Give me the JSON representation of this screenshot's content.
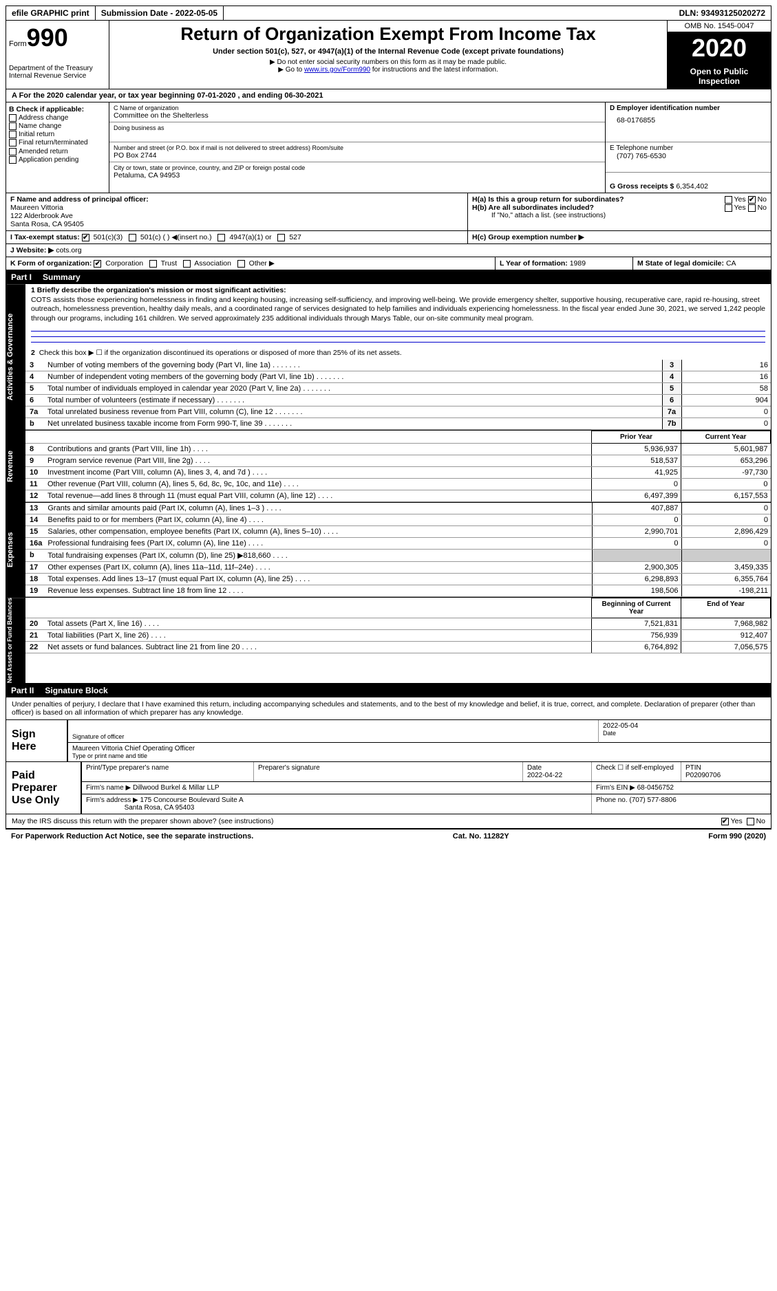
{
  "top": {
    "efile": "efile GRAPHIC print",
    "submission_date_label": "Submission Date - 2022-05-05",
    "dln_label": "DLN: 93493125020272"
  },
  "header": {
    "form_word": "Form",
    "form_num": "990",
    "dept": "Department of the Treasury",
    "irs": "Internal Revenue Service",
    "title": "Return of Organization Exempt From Income Tax",
    "subtitle": "Under section 501(c), 527, or 4947(a)(1) of the Internal Revenue Code (except private foundations)",
    "note1": "▶ Do not enter social security numbers on this form as it may be made public.",
    "note2_pre": "▶ Go to ",
    "note2_link": "www.irs.gov/Form990",
    "note2_post": " for instructions and the latest information.",
    "omb": "OMB No. 1545-0047",
    "year": "2020",
    "open": "Open to Public Inspection"
  },
  "a_line": "A For the 2020 calendar year, or tax year beginning 07-01-2020    , and ending 06-30-2021",
  "b": {
    "label": "B Check if applicable:",
    "opts": [
      "Address change",
      "Name change",
      "Initial return",
      "Final return/terminated",
      "Amended return",
      "Application pending"
    ]
  },
  "c": {
    "label_name": "C Name of organization",
    "org": "Committee on the Shelterless",
    "dba": "Doing business as",
    "addr_label": "Number and street (or P.O. box if mail is not delivered to street address)        Room/suite",
    "addr": "PO Box 2744",
    "city_label": "City or town, state or province, country, and ZIP or foreign postal code",
    "city": "Petaluma, CA  94953"
  },
  "d": {
    "label": "D Employer identification number",
    "val": "68-0176855"
  },
  "e": {
    "label": "E Telephone number",
    "val": "(707) 765-6530"
  },
  "g": {
    "label": "G Gross receipts $",
    "val": "6,354,402"
  },
  "f": {
    "label": "F  Name and address of principal officer:",
    "name": "Maureen Vittoria",
    "addr1": "122 Alderbrook Ave",
    "addr2": "Santa Rosa, CA  95405"
  },
  "h": {
    "a_label": "H(a)  Is this a group return for subordinates?",
    "a_yes": "Yes",
    "a_no": "No",
    "b_label": "H(b)  Are all subordinates included?",
    "b_note": "If \"No,\" attach a list. (see instructions)",
    "c_label": "H(c)  Group exemption number ▶"
  },
  "i": {
    "label": "I   Tax-exempt status:",
    "o1": "501(c)(3)",
    "o2": "501(c) (  ) ◀(insert no.)",
    "o3": "4947(a)(1) or",
    "o4": "527"
  },
  "j": {
    "label": "J  Website: ▶",
    "val": "cots.org"
  },
  "k": {
    "label": "K Form of organization:",
    "o1": "Corporation",
    "o2": "Trust",
    "o3": "Association",
    "o4": "Other ▶"
  },
  "l": {
    "label": "L Year of formation:",
    "val": "1989"
  },
  "m": {
    "label": "M State of legal domicile:",
    "val": "CA"
  },
  "parts": {
    "p1_num": "Part I",
    "p1_title": "Summary",
    "p2_num": "Part II",
    "p2_title": "Signature Block"
  },
  "summary": {
    "mission_label": "1   Briefly describe the organization's mission or most significant activities:",
    "mission": "COTS assists those experiencing homelessness in finding and keeping housing, increasing self-sufficiency, and improving well-being. We provide emergency shelter, supportive housing, recuperative care, rapid re-housing, street outreach, homelessness prevention, healthy daily meals, and a coordinated range of services designated to help families and individuals experiencing homelessness. In the fiscal year ended June 30, 2021, we served 1,242 people through our programs, including 161 children. We served approximately 235 additional individuals through Marys Table, our on-site community meal program.",
    "l2": "Check this box ▶ ☐  if the organization discontinued its operations or disposed of more than 25% of its net assets.",
    "lines_single": [
      {
        "n": "3",
        "d": "Number of voting members of the governing body (Part VI, line 1a)",
        "c": "3",
        "v": "16"
      },
      {
        "n": "4",
        "d": "Number of independent voting members of the governing body (Part VI, line 1b)",
        "c": "4",
        "v": "16"
      },
      {
        "n": "5",
        "d": "Total number of individuals employed in calendar year 2020 (Part V, line 2a)",
        "c": "5",
        "v": "58"
      },
      {
        "n": "6",
        "d": "Total number of volunteers (estimate if necessary)",
        "c": "6",
        "v": "904"
      },
      {
        "n": "7a",
        "d": "Total unrelated business revenue from Part VIII, column (C), line 12",
        "c": "7a",
        "v": "0"
      },
      {
        "n": "b",
        "d": "Net unrelated business taxable income from Form 990-T, line 39",
        "c": "7b",
        "v": "0"
      }
    ],
    "two_col_hdr1": "Prior Year",
    "two_col_hdr2": "Current Year",
    "revenue": [
      {
        "n": "8",
        "d": "Contributions and grants (Part VIII, line 1h)",
        "p": "5,936,937",
        "c": "5,601,987"
      },
      {
        "n": "9",
        "d": "Program service revenue (Part VIII, line 2g)",
        "p": "518,537",
        "c": "653,296"
      },
      {
        "n": "10",
        "d": "Investment income (Part VIII, column (A), lines 3, 4, and 7d )",
        "p": "41,925",
        "c": "-97,730"
      },
      {
        "n": "11",
        "d": "Other revenue (Part VIII, column (A), lines 5, 6d, 8c, 9c, 10c, and 11e)",
        "p": "0",
        "c": "0"
      },
      {
        "n": "12",
        "d": "Total revenue—add lines 8 through 11 (must equal Part VIII, column (A), line 12)",
        "p": "6,497,399",
        "c": "6,157,553"
      }
    ],
    "expenses": [
      {
        "n": "13",
        "d": "Grants and similar amounts paid (Part IX, column (A), lines 1–3 )",
        "p": "407,887",
        "c": "0"
      },
      {
        "n": "14",
        "d": "Benefits paid to or for members (Part IX, column (A), line 4)",
        "p": "0",
        "c": "0"
      },
      {
        "n": "15",
        "d": "Salaries, other compensation, employee benefits (Part IX, column (A), lines 5–10)",
        "p": "2,990,701",
        "c": "2,896,429"
      },
      {
        "n": "16a",
        "d": "Professional fundraising fees (Part IX, column (A), line 11e)",
        "p": "0",
        "c": "0"
      },
      {
        "n": "b",
        "d": "Total fundraising expenses (Part IX, column (D), line 25) ▶818,660",
        "p": "",
        "c": "",
        "grey": true
      },
      {
        "n": "17",
        "d": "Other expenses (Part IX, column (A), lines 11a–11d, 11f–24e)",
        "p": "2,900,305",
        "c": "3,459,335"
      },
      {
        "n": "18",
        "d": "Total expenses. Add lines 13–17 (must equal Part IX, column (A), line 25)",
        "p": "6,298,893",
        "c": "6,355,764"
      },
      {
        "n": "19",
        "d": "Revenue less expenses. Subtract line 18 from line 12",
        "p": "198,506",
        "c": "-198,211"
      }
    ],
    "net_hdr1": "Beginning of Current Year",
    "net_hdr2": "End of Year",
    "net": [
      {
        "n": "20",
        "d": "Total assets (Part X, line 16)",
        "p": "7,521,831",
        "c": "7,968,982"
      },
      {
        "n": "21",
        "d": "Total liabilities (Part X, line 26)",
        "p": "756,939",
        "c": "912,407"
      },
      {
        "n": "22",
        "d": "Net assets or fund balances. Subtract line 21 from line 20",
        "p": "6,764,892",
        "c": "7,056,575"
      }
    ]
  },
  "side_labels": {
    "act": "Activities & Governance",
    "rev": "Revenue",
    "exp": "Expenses",
    "net": "Net Assets or Fund Balances"
  },
  "sig": {
    "penalties": "Under penalties of perjury, I declare that I have examined this return, including accompanying schedules and statements, and to the best of my knowledge and belief, it is true, correct, and complete. Declaration of preparer (other than officer) is based on all information of which preparer has any knowledge.",
    "sign_here": "Sign Here",
    "sig_officer": "Signature of officer",
    "sig_date": "2022-05-04",
    "date_label": "Date",
    "officer_name": "Maureen Vittoria  Chief Operating Officer",
    "type_label": "Type or print name and title",
    "paid": "Paid Preparer Use Only",
    "prep_name_label": "Print/Type preparer's name",
    "prep_sig_label": "Preparer's signature",
    "prep_date_label": "Date",
    "prep_date": "2022-04-22",
    "check_se": "Check ☐ if self-employed",
    "ptin_label": "PTIN",
    "ptin": "P02090706",
    "firm_name_label": "Firm's name     ▶",
    "firm_name": "Dillwood Burkel & Millar LLP",
    "firm_ein_label": "Firm's EIN ▶",
    "firm_ein": "68-0456752",
    "firm_addr_label": "Firm's address ▶",
    "firm_addr1": "175 Concourse Boulevard Suite A",
    "firm_addr2": "Santa Rosa, CA  95403",
    "phone_label": "Phone no.",
    "phone": "(707) 577-8806",
    "discuss": "May the IRS discuss this return with the preparer shown above? (see instructions)",
    "yes": "Yes",
    "no": "No"
  },
  "footer": {
    "pra": "For Paperwork Reduction Act Notice, see the separate instructions.",
    "cat": "Cat. No. 11282Y",
    "form": "Form 990 (2020)"
  }
}
